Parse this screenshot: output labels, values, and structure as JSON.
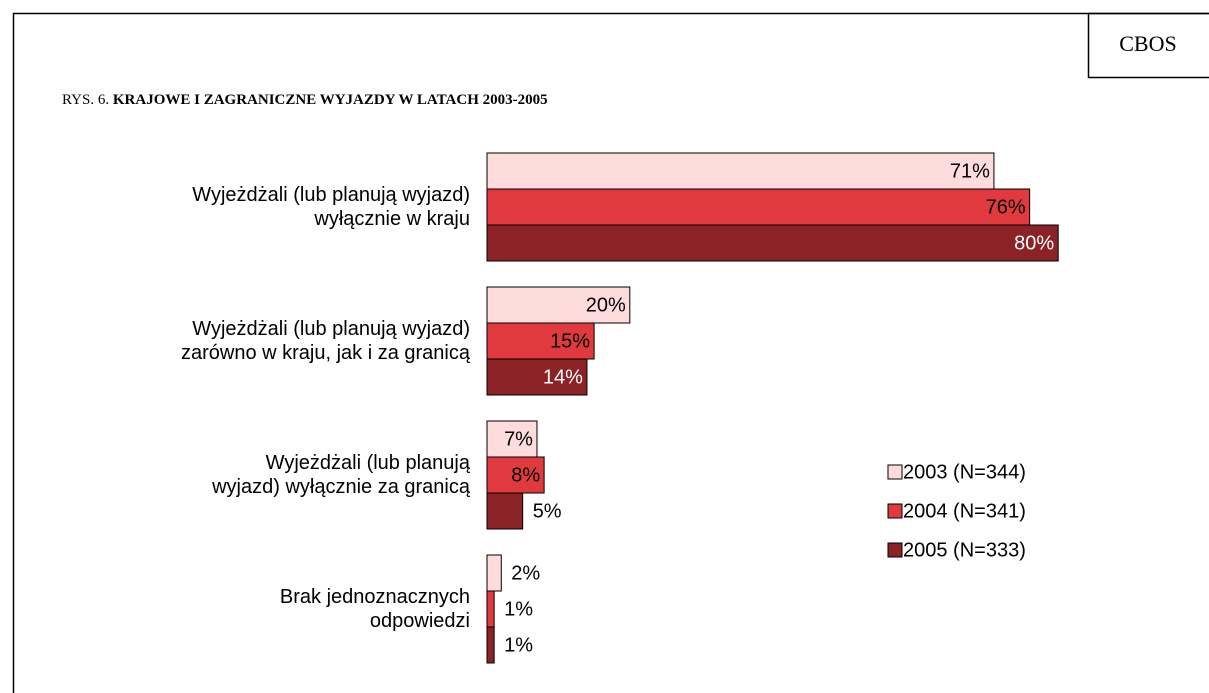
{
  "chart_data": {
    "type": "bar",
    "orientation": "horizontal",
    "badge": "CBOS",
    "figure_label": "RYS. 6.",
    "title": "KRAJOWE I ZAGRANICZNE WYJAZDY W LATACH 2003-2005",
    "categories": [
      "Wyjeżdżali (lub planują wyjazd)\nwyłącznie w kraju",
      "Wyjeżdżali (lub planują wyjazd)\nzarówno w kraju, jak i za granicą",
      "Wyjeżdżali (lub planują\nwyjazd) wyłącznie za granicą",
      "Brak jednoznacznych\nodpowiedzi"
    ],
    "xlim": [
      0,
      100
    ],
    "series": [
      {
        "name": "2003 (N=344)",
        "color": "#ffdcdc",
        "label_color": "#000000",
        "values": [
          71,
          20,
          7,
          2
        ],
        "value_labels": [
          "71%",
          "20%",
          "7%",
          "2%"
        ]
      },
      {
        "name": "2004 (N=341)",
        "color": "#e03a3e",
        "label_color": "#000000",
        "values": [
          76,
          15,
          8,
          1
        ],
        "value_labels": [
          "76%",
          "15%",
          "8%",
          "1%"
        ]
      },
      {
        "name": "2005 (N=333)",
        "color": "#8b2226",
        "label_color": "#ffffff",
        "values": [
          80,
          14,
          5,
          1
        ],
        "value_labels": [
          "80%",
          "14%",
          "5%",
          "1%"
        ]
      }
    ]
  }
}
